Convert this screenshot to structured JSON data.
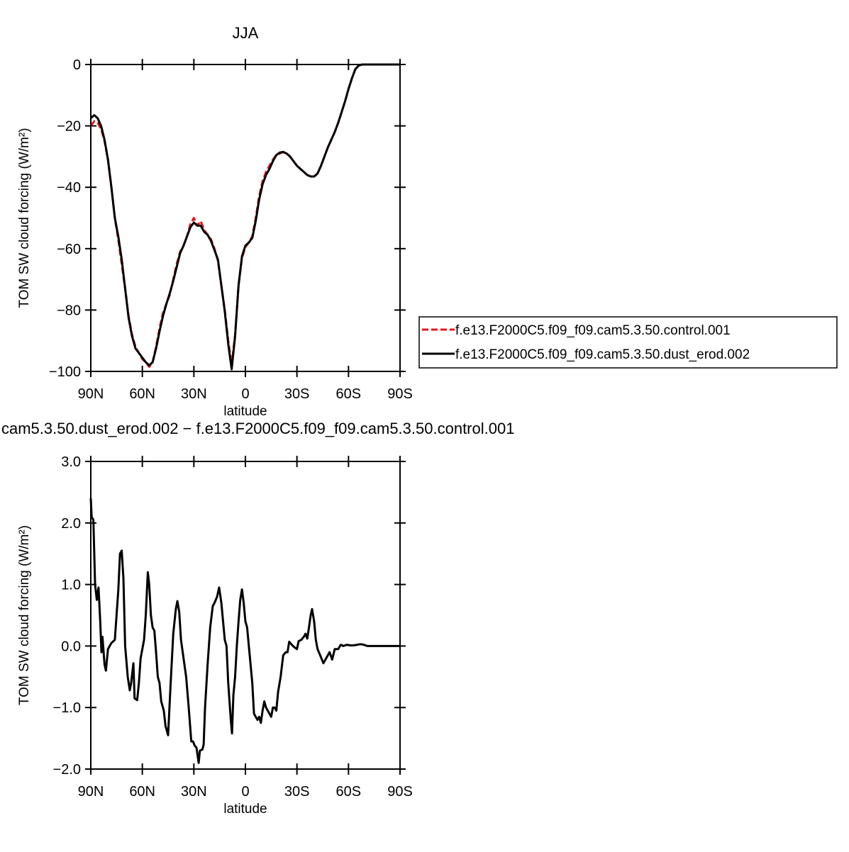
{
  "chart_data": [
    {
      "type": "line",
      "title": "JJA",
      "xlabel": "latitude",
      "ylabel": "TOM SW cloud forcing (W/m²)",
      "xlim": [
        90,
        -90
      ],
      "xticks": [
        {
          "value": 90,
          "label": "90N"
        },
        {
          "value": 60,
          "label": "60N"
        },
        {
          "value": 30,
          "label": "30N"
        },
        0,
        {
          "value": -30,
          "label": "30S"
        },
        {
          "value": -60,
          "label": "60S"
        },
        {
          "value": -90,
          "label": "90S"
        }
      ],
      "ylim": [
        -100,
        0
      ],
      "yticks": [
        0,
        {
          "value": -20,
          "label": "−20"
        },
        {
          "value": -40,
          "label": "−40"
        },
        {
          "value": -60,
          "label": "−60"
        },
        {
          "value": -80,
          "label": "−80"
        },
        {
          "value": -100,
          "label": "−100"
        }
      ],
      "grid": false,
      "legend": "outside-right",
      "x": [
        90,
        88,
        86,
        84,
        82,
        80,
        78,
        76,
        74,
        72,
        70,
        68,
        66,
        64,
        62,
        60,
        58,
        56,
        54,
        52,
        50,
        48,
        46,
        44,
        42,
        40,
        38,
        36,
        34,
        32,
        30,
        28,
        26,
        24,
        22,
        20,
        18,
        16,
        14,
        12,
        10,
        8,
        6,
        4,
        2,
        0,
        -2,
        -4,
        -6,
        -8,
        -10,
        -12,
        -14,
        -16,
        -18,
        -20,
        -22,
        -24,
        -26,
        -28,
        -30,
        -32,
        -34,
        -36,
        -38,
        -40,
        -42,
        -44,
        -46,
        -48,
        -50,
        -52,
        -54,
        -56,
        -58,
        -60,
        -62,
        -64,
        -66,
        -68,
        -70,
        -80,
        -90
      ],
      "series": [
        {
          "name": "f.e13.F2000C5.f09_f09.cam5.3.50.control.001",
          "color": "#e8141c",
          "line_style": "dashed",
          "values": [
            -20,
            -18.5,
            -19,
            -21,
            -25,
            -31,
            -40,
            -50,
            -57,
            -65,
            -73,
            -82,
            -88,
            -92,
            -94,
            -96,
            -97,
            -98.5,
            -97,
            -92,
            -86,
            -81,
            -78,
            -75,
            -70,
            -65,
            -61,
            -59,
            -56,
            -52,
            -50,
            -52.5,
            -51,
            -54,
            -55.5,
            -57,
            -60,
            -64,
            -72,
            -80,
            -90,
            -98,
            -88,
            -72,
            -63,
            -59.5,
            -58,
            -56,
            -50,
            -43,
            -38,
            -35,
            -33,
            -31,
            -29.5,
            -29,
            -28.5,
            -29,
            -30,
            -31.5,
            -33,
            -34,
            -35,
            -36,
            -36.5,
            -36.5,
            -35.5,
            -33,
            -30,
            -27,
            -24.5,
            -22,
            -19,
            -15.5,
            -12,
            -8,
            -4.5,
            -1.5,
            -0.3,
            0,
            0,
            0,
            0
          ]
        },
        {
          "name": "f.e13.F2000C5.f09_f09.cam5.3.50.dust_erod.002",
          "color": "#000000",
          "line_style": "solid",
          "values": [
            -17.5,
            -16.5,
            -17.5,
            -20,
            -24.5,
            -31,
            -40,
            -50,
            -56,
            -63.5,
            -73,
            -82.5,
            -88.5,
            -92.5,
            -94,
            -95.5,
            -97,
            -98,
            -97,
            -92.5,
            -87,
            -82,
            -78,
            -74.5,
            -70.5,
            -66,
            -61.5,
            -59,
            -56,
            -53,
            -51.5,
            -52.5,
            -52.5,
            -54.5,
            -55.5,
            -57.5,
            -60.5,
            -63.5,
            -72,
            -80.5,
            -91,
            -99.3,
            -88.5,
            -72,
            -62.5,
            -59,
            -58,
            -56.5,
            -51,
            -44,
            -39,
            -36,
            -34,
            -31.5,
            -29.5,
            -28.7,
            -28.5,
            -29,
            -30,
            -31.5,
            -33,
            -34,
            -35,
            -36,
            -36.5,
            -36.5,
            -35.5,
            -33,
            -30,
            -27,
            -24.5,
            -22,
            -19,
            -15.5,
            -12,
            -8,
            -4.5,
            -1.5,
            -0.3,
            0,
            0,
            0,
            0
          ]
        }
      ]
    },
    {
      "type": "line",
      "title": "cam5.3.50.dust_erod.002 − f.e13.F2000C5.f09_f09.cam5.3.50.control.001",
      "xlabel": "latitude",
      "ylabel": "TOM SW cloud forcing (W/m²)",
      "xlim": [
        90,
        -90
      ],
      "xticks": [
        {
          "value": 90,
          "label": "90N"
        },
        {
          "value": 60,
          "label": "60N"
        },
        {
          "value": 30,
          "label": "30N"
        },
        0,
        {
          "value": -30,
          "label": "30S"
        },
        {
          "value": -60,
          "label": "60S"
        },
        {
          "value": -90,
          "label": "90S"
        }
      ],
      "ylim": [
        -2,
        3
      ],
      "yticks": [
        {
          "value": 3,
          "label": "3.0"
        },
        {
          "value": 2,
          "label": "2.0"
        },
        {
          "value": 1,
          "label": "1.0"
        },
        {
          "value": 0,
          "label": "0.0"
        },
        {
          "value": -1,
          "label": "−1.0"
        },
        {
          "value": -2,
          "label": "−2.0"
        }
      ],
      "grid": false,
      "x": [
        90,
        89.5,
        88.5,
        87.5,
        86.5,
        85.5,
        84.5,
        83.8,
        83.2,
        82,
        81.2,
        80,
        78,
        76,
        74,
        73,
        72,
        71,
        70,
        68.5,
        67.3,
        66.5,
        65.2,
        64.5,
        63,
        62,
        61,
        59,
        58,
        56.8,
        56,
        55,
        54,
        53,
        52,
        51,
        50,
        49,
        47.5,
        46.5,
        45,
        43.5,
        42,
        40.5,
        39.6,
        38.5,
        37.5,
        36,
        34.5,
        33,
        31.5,
        30.5,
        29.5,
        28.5,
        27.2,
        26.5,
        25,
        24.3,
        23.5,
        22,
        20.5,
        19,
        18,
        16.5,
        15.3,
        14,
        13,
        12,
        11,
        10,
        8.5,
        7.8,
        7,
        6,
        5,
        4,
        3,
        2,
        1,
        0,
        -1,
        -2,
        -3,
        -4,
        -5,
        -6,
        -7,
        -8,
        -9,
        -10,
        -11,
        -12,
        -13,
        -14,
        -15,
        -16,
        -17,
        -18,
        -19,
        -20.5,
        -22,
        -23.5,
        -24.5,
        -25.5,
        -27,
        -28.5,
        -30,
        -31,
        -32.5,
        -34,
        -35,
        -36,
        -37,
        -38,
        -38.8,
        -40,
        -41,
        -42,
        -43.5,
        -45.4,
        -47,
        -48,
        -49,
        -50.5,
        -52,
        -54,
        -55.5,
        -57,
        -59,
        -61,
        -63,
        -65,
        -67,
        -69,
        -71,
        -75,
        -90
      ],
      "series": [
        {
          "name": "difference",
          "color": "#000000",
          "line_style": "solid",
          "values": [
            2.4,
            2.1,
            2.05,
            1.0,
            0.75,
            0.95,
            0.4,
            -0.1,
            0.15,
            -0.3,
            -0.4,
            -0.05,
            0.05,
            0.1,
            0.9,
            1.5,
            1.55,
            1.1,
            0,
            -0.5,
            -0.72,
            -0.6,
            -0.28,
            -0.85,
            -0.88,
            -0.6,
            -0.2,
            0.1,
            0.5,
            1.2,
            1.0,
            0.5,
            0.3,
            0.25,
            -0.1,
            -0.5,
            -0.6,
            -0.9,
            -1.05,
            -1.3,
            -1.45,
            -0.6,
            0.2,
            0.6,
            0.73,
            0.55,
            0.1,
            -0.2,
            -0.5,
            -1.0,
            -1.55,
            -1.55,
            -1.62,
            -1.65,
            -1.9,
            -1.7,
            -1.68,
            -1.6,
            -1.0,
            -0.3,
            0.3,
            0.65,
            0.7,
            0.8,
            0.95,
            0.7,
            0.4,
            0.1,
            0,
            -0.6,
            -1.2,
            -1.42,
            -0.8,
            -0.5,
            0,
            0.4,
            0.75,
            0.92,
            0.7,
            0.4,
            0.3,
            0,
            -0.3,
            -0.6,
            -1.1,
            -1.15,
            -1.2,
            -1.15,
            -1.25,
            -1.05,
            -0.9,
            -1.0,
            -1.05,
            -1.1,
            -1.15,
            -1.0,
            -1.0,
            -1.05,
            -0.75,
            -0.5,
            -0.15,
            -0.1,
            -0.1,
            0.07,
            0.02,
            -0.02,
            -0.05,
            0.08,
            0.1,
            0.15,
            0.2,
            0.12,
            0.3,
            0.5,
            0.6,
            0.4,
            0.1,
            -0.05,
            -0.15,
            -0.28,
            -0.2,
            -0.15,
            -0.1,
            -0.22,
            -0.05,
            -0.05,
            0.02,
            0,
            0.02,
            0.01,
            0.01,
            0.02,
            0.03,
            0.02,
            0,
            0,
            0
          ]
        }
      ]
    }
  ]
}
